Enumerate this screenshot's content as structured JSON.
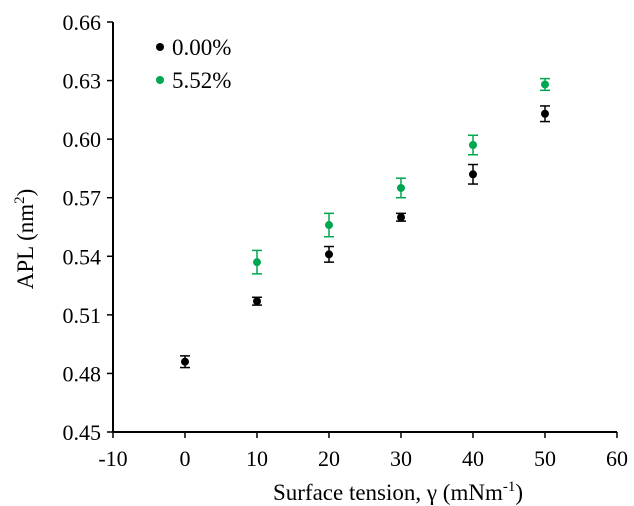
{
  "chart_data": {
    "type": "scatter",
    "xlabel_main": "Surface tension, γ (mNm",
    "xlabel_sup": "-1",
    "xlabel_tail": ")",
    "ylabel_main": "APL (nm",
    "ylabel_sup": "2",
    "ylabel_tail": ")",
    "xlim": [
      -10,
      60
    ],
    "ylim": [
      0.45,
      0.66
    ],
    "x_ticks": [
      "-10",
      "0",
      "10",
      "20",
      "30",
      "40",
      "50",
      "60"
    ],
    "y_ticks": [
      "0.45",
      "0.48",
      "0.51",
      "0.54",
      "0.57",
      "0.60",
      "0.63",
      "0.66"
    ],
    "grid": false,
    "legend_position": "top-left",
    "series": [
      {
        "name": "0.00%",
        "color": "#000000",
        "points": [
          {
            "x": 0,
            "y": 0.486,
            "err": 0.003
          },
          {
            "x": 10,
            "y": 0.517,
            "err": 0.002
          },
          {
            "x": 20,
            "y": 0.541,
            "err": 0.004
          },
          {
            "x": 30,
            "y": 0.56,
            "err": 0.002
          },
          {
            "x": 40,
            "y": 0.582,
            "err": 0.005
          },
          {
            "x": 50,
            "y": 0.613,
            "err": 0.004
          }
        ]
      },
      {
        "name": "5.52%",
        "color": "#00a650",
        "points": [
          {
            "x": 10,
            "y": 0.537,
            "err": 0.006
          },
          {
            "x": 20,
            "y": 0.556,
            "err": 0.006
          },
          {
            "x": 30,
            "y": 0.575,
            "err": 0.005
          },
          {
            "x": 40,
            "y": 0.597,
            "err": 0.005
          },
          {
            "x": 50,
            "y": 0.628,
            "err": 0.003
          }
        ]
      }
    ]
  }
}
